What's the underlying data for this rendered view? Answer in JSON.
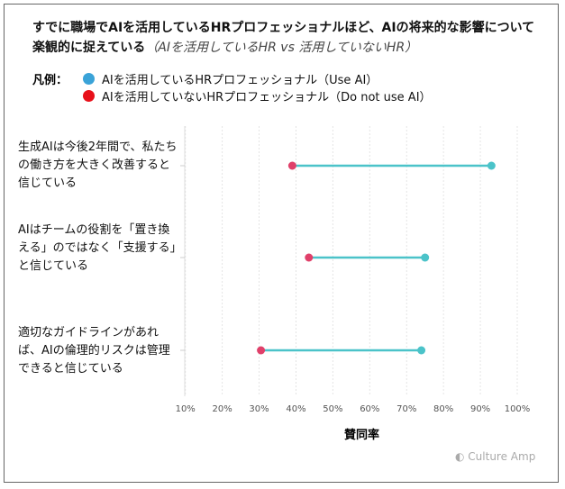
{
  "title": "すでに職場でAIを活用しているHRプロフェッショナルほど、AIの将来的な影響について楽観的に捉えている",
  "subtitle": "（AIを活用しているHR vs 活用していないHR）",
  "legend": {
    "label": "凡例：",
    "items": [
      {
        "name": "AIを活用しているHRプロフェッショナル（Use AI）",
        "color": "#3aa3d8"
      },
      {
        "name": "AIを活用していないHRプロフェッショナル（Do not use AI）",
        "color": "#e8101a"
      }
    ]
  },
  "brand": "Culture Amp",
  "chart_data": {
    "type": "dumbbell",
    "xlabel": "賛同率",
    "xlim": [
      10,
      100
    ],
    "ticks": [
      "10%",
      "20%",
      "30%",
      "40%",
      "50%",
      "60%",
      "70%",
      "80%",
      "90%",
      "100%"
    ],
    "grid": "vertical dotted",
    "categories": [
      "生成AIは今後2年間で、私たちの働き方を大きく改善すると信じている",
      "AIはチームの役割を「置き換える」のではなく「支援する」と信じている",
      "適切なガイドラインがあれば、AIの倫理的リスクは管理できると信じている"
    ],
    "series": [
      {
        "name": "Use AI",
        "values": [
          93,
          75,
          74
        ],
        "color": "#4bc3c9"
      },
      {
        "name": "Do not use AI",
        "values": [
          39,
          43.5,
          30.5
        ],
        "color": "#e0406a"
      }
    ]
  }
}
